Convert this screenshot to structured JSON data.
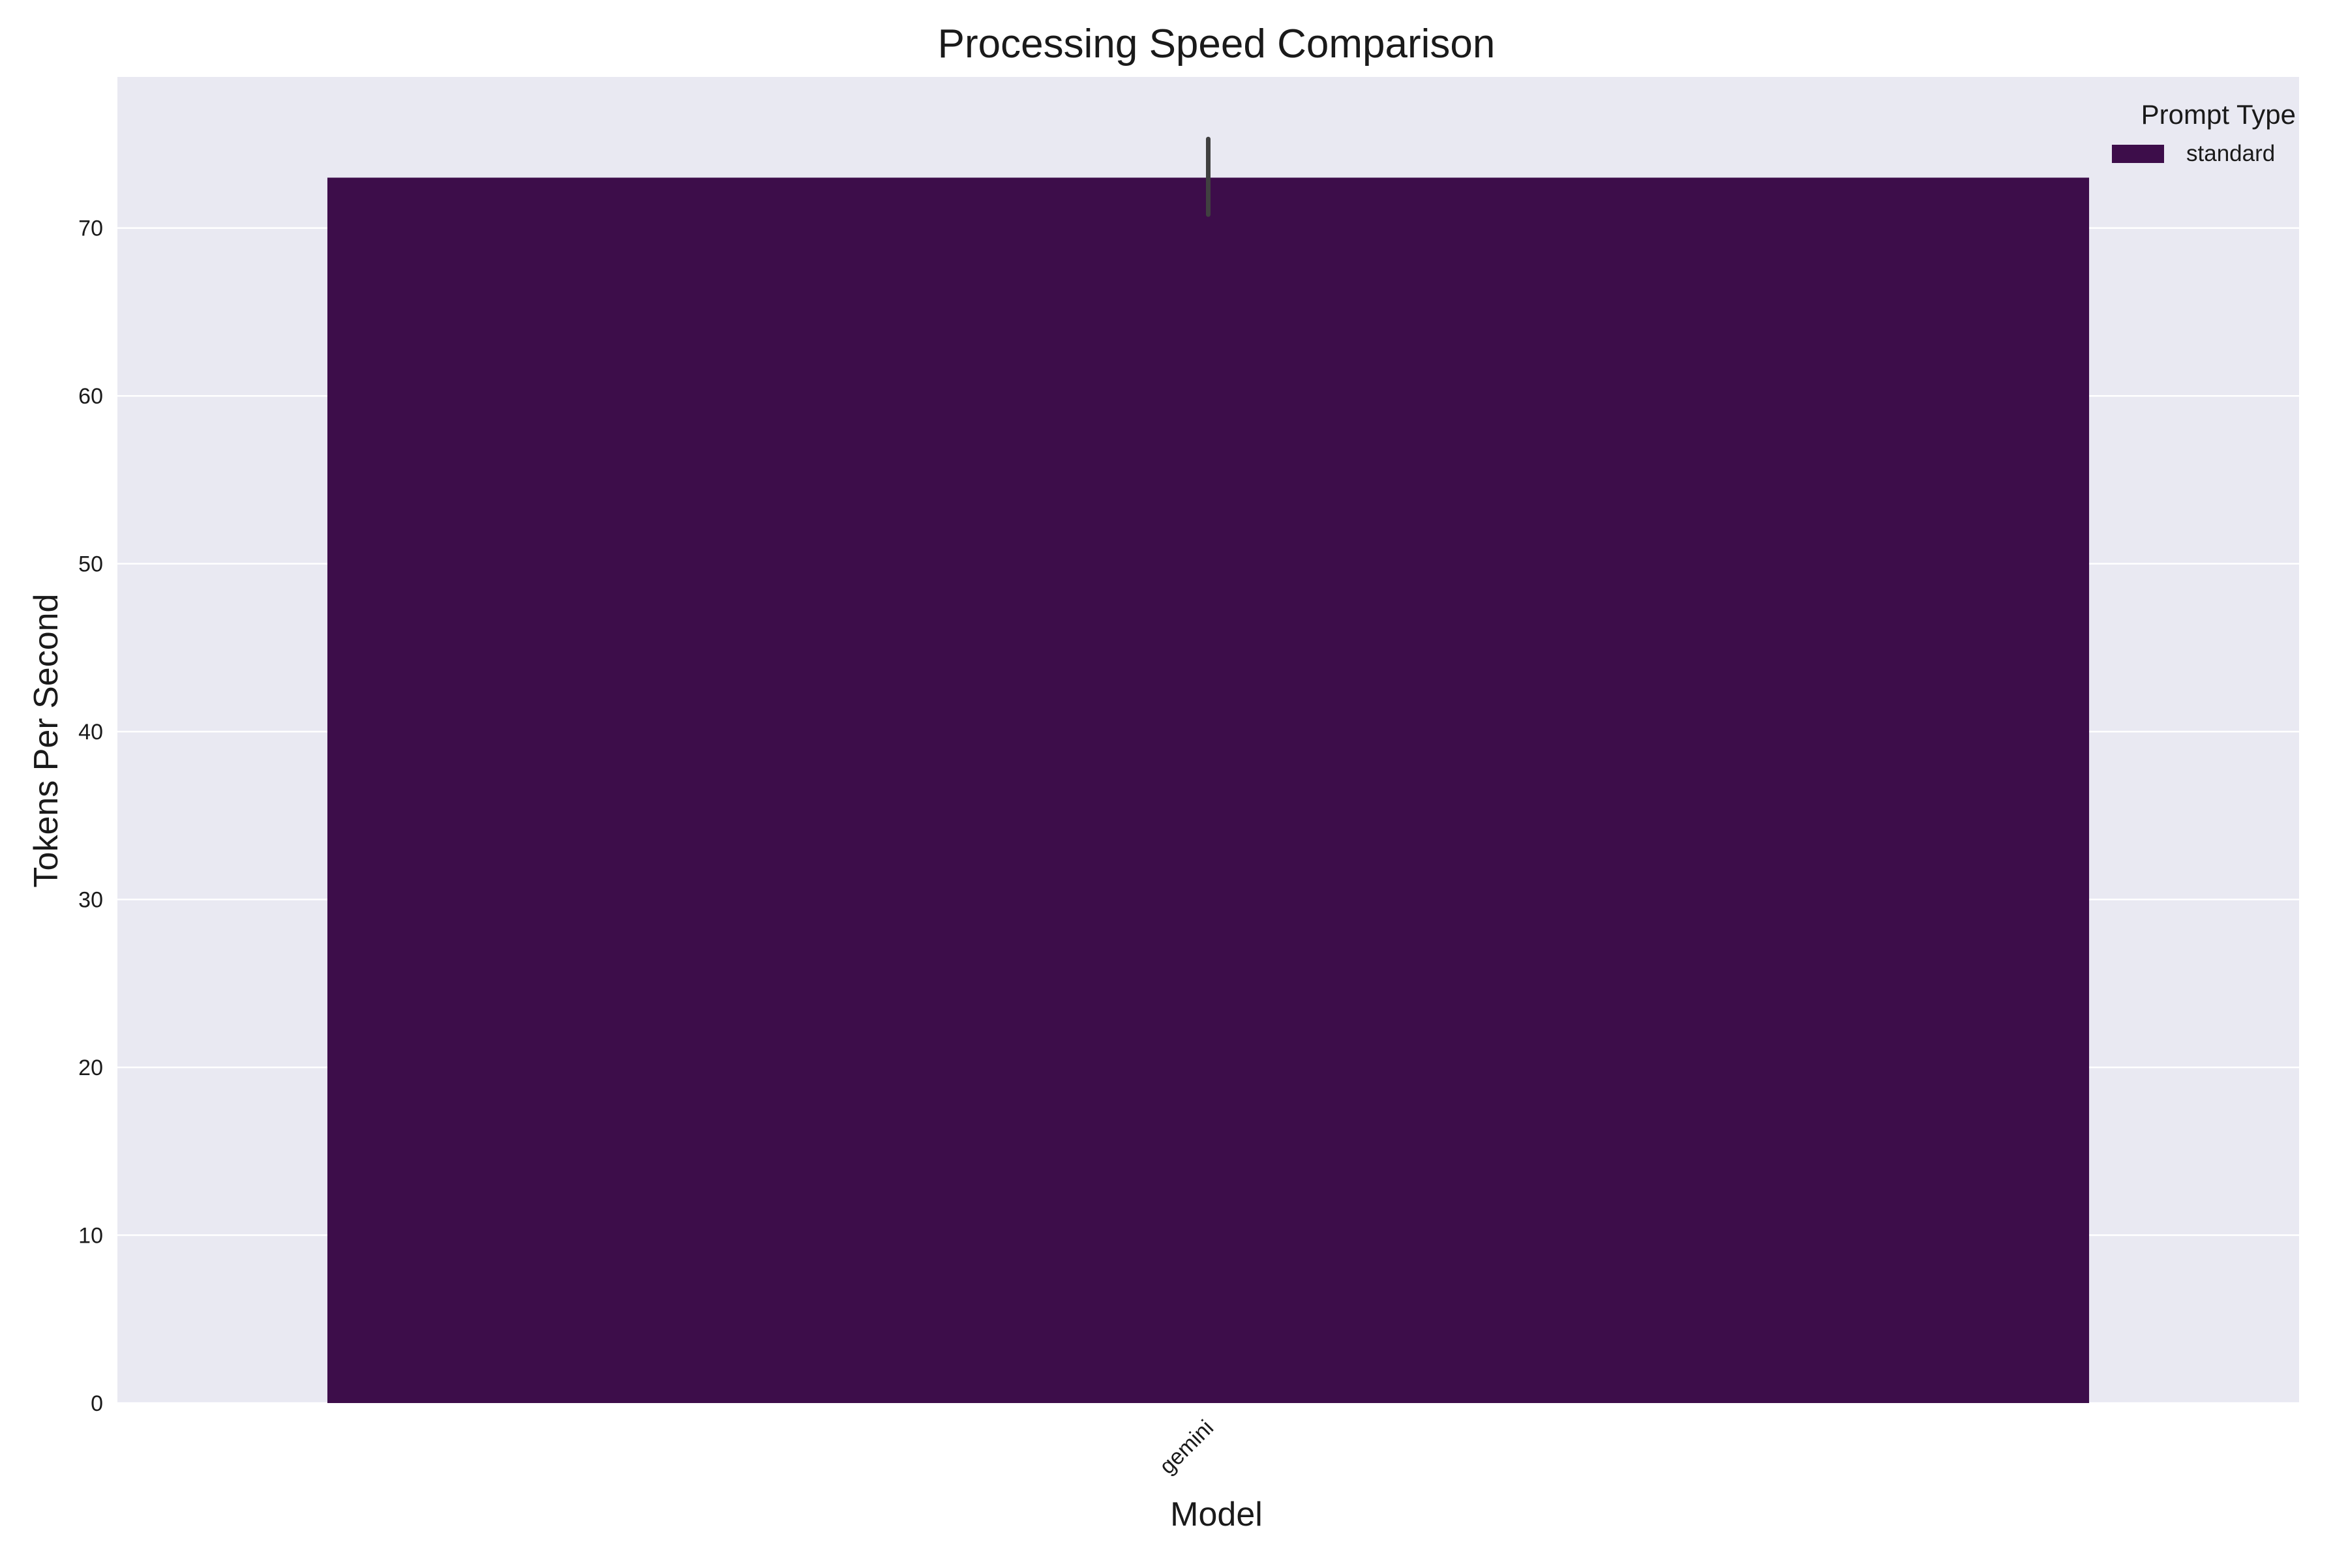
{
  "chart_data": {
    "type": "bar",
    "title": "Processing Speed Comparison",
    "xlabel": "Model",
    "ylabel": "Tokens Per Second",
    "categories": [
      "gemini"
    ],
    "series": [
      {
        "name": "standard",
        "values": [
          73.0
        ],
        "error_low": [
          70.8
        ],
        "error_high": [
          75.3
        ],
        "color": "#3d0d4a"
      }
    ],
    "ylim": [
      0,
      79
    ],
    "yticks": [
      0,
      10,
      20,
      30,
      40,
      50,
      60,
      70
    ],
    "grid": true,
    "legend": {
      "title": "Prompt Type",
      "placement": "top-right"
    },
    "x_tick_rotation_deg": 45
  },
  "colors": {
    "plot_background": "#e9e9f2",
    "grid": "#ffffff",
    "error_bar": "#404040",
    "text": "#1a1a1a"
  }
}
